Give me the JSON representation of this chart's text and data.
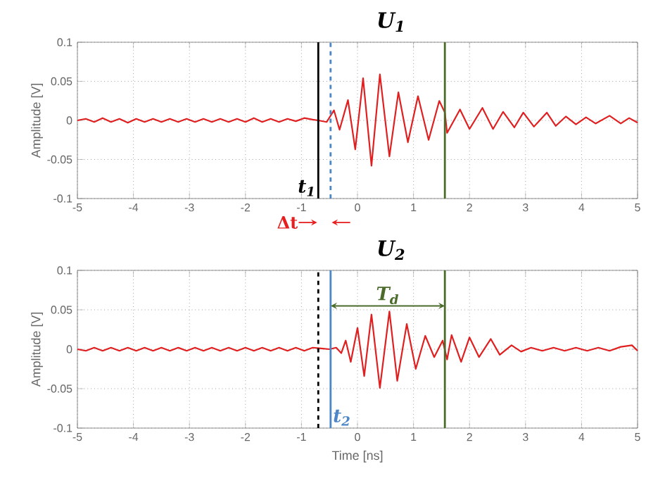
{
  "chart_data": [
    {
      "type": "line",
      "title": "U$_{1}$",
      "ylabel": "Amplitude [V]",
      "xlim": [
        -5,
        5
      ],
      "ylim": [
        -0.1,
        0.1
      ],
      "xticks": [
        -5,
        -4,
        -3,
        -2,
        -1,
        0,
        1,
        2,
        3,
        4,
        5
      ],
      "yticks": [
        -0.1,
        -0.05,
        0,
        0.05,
        0.1
      ],
      "grid": true,
      "line_style": "solid",
      "series": [
        {
          "color": "#e02020",
          "x": [
            -5,
            -4.85,
            -4.7,
            -4.55,
            -4.4,
            -4.25,
            -4.1,
            -3.95,
            -3.8,
            -3.65,
            -3.5,
            -3.35,
            -3.2,
            -3.05,
            -2.9,
            -2.75,
            -2.6,
            -2.45,
            -2.3,
            -2.15,
            -2,
            -1.85,
            -1.7,
            -1.55,
            -1.4,
            -1.25,
            -1.1,
            -0.95,
            -0.8,
            -0.7,
            -0.55,
            -0.42,
            -0.32,
            -0.17,
            -0.04,
            0.1,
            0.25,
            0.4,
            0.57,
            0.73,
            0.9,
            1.08,
            1.27,
            1.46,
            1.56,
            1.6,
            1.83,
            2.0,
            2.23,
            2.42,
            2.6,
            2.8,
            2.96,
            3.15,
            3.38,
            3.54,
            3.72,
            3.9,
            4.08,
            4.25,
            4.5,
            4.7,
            4.85,
            5
          ],
          "values": [
            0,
            0.002,
            -0.002,
            0.003,
            -0.002,
            0.002,
            -0.003,
            0.002,
            -0.002,
            0.002,
            -0.002,
            0.002,
            -0.002,
            0.002,
            -0.002,
            0.002,
            -0.002,
            0.002,
            -0.002,
            0.002,
            -0.002,
            0.003,
            -0.002,
            0.002,
            -0.002,
            0.002,
            -0.001,
            0.003,
            0.001,
            0,
            -0.002,
            0.013,
            -0.012,
            0.026,
            -0.037,
            0.054,
            -0.058,
            0.059,
            -0.046,
            0.036,
            -0.028,
            0.031,
            -0.025,
            0.025,
            0.01,
            -0.016,
            0.014,
            -0.011,
            0.016,
            -0.011,
            0.011,
            -0.009,
            0.01,
            -0.008,
            0.01,
            -0.007,
            0.005,
            -0.005,
            0.004,
            -0.004,
            0.006,
            -0.004,
            0.003,
            -0.003
          ]
        }
      ],
      "ref_lines": [
        {
          "axis": "x",
          "value": -0.7,
          "color": "#000000",
          "line_style": "solid",
          "label": "t$_{1}$"
        },
        {
          "axis": "x",
          "value": -0.48,
          "color": "#4a86c8",
          "line_style": "dashed"
        },
        {
          "axis": "x",
          "value": 1.56,
          "color": "#4b6b2a",
          "line_style": "solid"
        }
      ],
      "annotations": [
        "Δt"
      ]
    },
    {
      "type": "line",
      "title": "U$_{2}$",
      "xlabel": "Time [ns]",
      "ylabel": "Amplitude [V]",
      "xlim": [
        -5,
        5
      ],
      "ylim": [
        -0.1,
        0.1
      ],
      "xticks": [
        -5,
        -4,
        -3,
        -2,
        -1,
        0,
        1,
        2,
        3,
        4,
        5
      ],
      "yticks": [
        -0.1,
        -0.05,
        0,
        0.05,
        0.1
      ],
      "grid": true,
      "line_style": "solid",
      "series": [
        {
          "color": "#e02020",
          "x": [
            -5,
            -4.85,
            -4.7,
            -4.55,
            -4.4,
            -4.25,
            -4.1,
            -3.95,
            -3.8,
            -3.65,
            -3.5,
            -3.35,
            -3.2,
            -3.05,
            -2.9,
            -2.75,
            -2.6,
            -2.45,
            -2.3,
            -2.15,
            -2,
            -1.85,
            -1.7,
            -1.55,
            -1.4,
            -1.25,
            -1.1,
            -0.95,
            -0.8,
            -0.65,
            -0.5,
            -0.38,
            -0.29,
            -0.21,
            -0.12,
            0,
            0.12,
            0.25,
            0.4,
            0.57,
            0.71,
            0.88,
            1.04,
            1.21,
            1.37,
            1.52,
            1.6,
            1.68,
            1.85,
            2.0,
            2.17,
            2.38,
            2.54,
            2.75,
            2.92,
            3.1,
            3.3,
            3.5,
            3.7,
            3.9,
            4.1,
            4.3,
            4.5,
            4.7,
            4.9,
            5
          ],
          "values": [
            0,
            -0.002,
            0.002,
            -0.002,
            0.002,
            -0.002,
            0.002,
            -0.002,
            0.002,
            -0.002,
            0.002,
            -0.002,
            0.002,
            -0.002,
            0.002,
            -0.002,
            0.002,
            -0.002,
            0.002,
            -0.002,
            0.002,
            -0.002,
            0.002,
            -0.002,
            0.002,
            -0.002,
            0.002,
            -0.002,
            0.002,
            0.001,
            0,
            0.002,
            -0.005,
            0.011,
            -0.016,
            0.027,
            -0.034,
            0.044,
            -0.049,
            0.048,
            -0.04,
            0.032,
            -0.025,
            0.017,
            -0.01,
            0.011,
            -0.013,
            0.018,
            -0.016,
            0.015,
            -0.01,
            0.013,
            -0.007,
            0.005,
            -0.003,
            0.002,
            -0.002,
            0.002,
            -0.002,
            0.002,
            -0.002,
            0.002,
            -0.002,
            0.003,
            0.005,
            -0.002
          ]
        }
      ],
      "ref_lines": [
        {
          "axis": "x",
          "value": -0.7,
          "color": "#000000",
          "line_style": "dashed"
        },
        {
          "axis": "x",
          "value": -0.48,
          "color": "#4a86c8",
          "line_style": "solid",
          "label": "t$_{2}$"
        },
        {
          "axis": "x",
          "value": 1.56,
          "color": "#4b6b2a",
          "line_style": "solid"
        }
      ],
      "annotations": [
        {
          "text": "T$_{d}$",
          "x": 0.54,
          "y": 0.055
        }
      ]
    }
  ]
}
